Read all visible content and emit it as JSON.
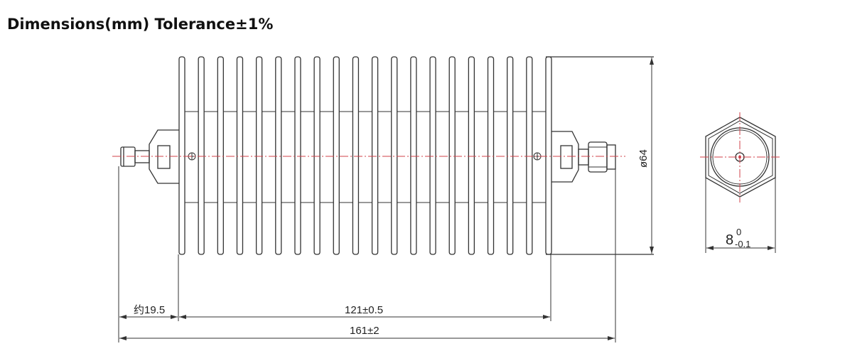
{
  "title": "Dimensions(mm) Tolerance±1%",
  "drawing": {
    "fin_count": 20,
    "dimensions": {
      "connector_length": "约19.5",
      "body_length": "121±0.5",
      "total_length": "161±2",
      "diameter": "ø64",
      "hex_size_nominal": "8",
      "hex_size_upper": "0",
      "hex_size_lower": "-0.1"
    },
    "colors": {
      "line": "#333333",
      "centerline": "#d0404a"
    }
  }
}
